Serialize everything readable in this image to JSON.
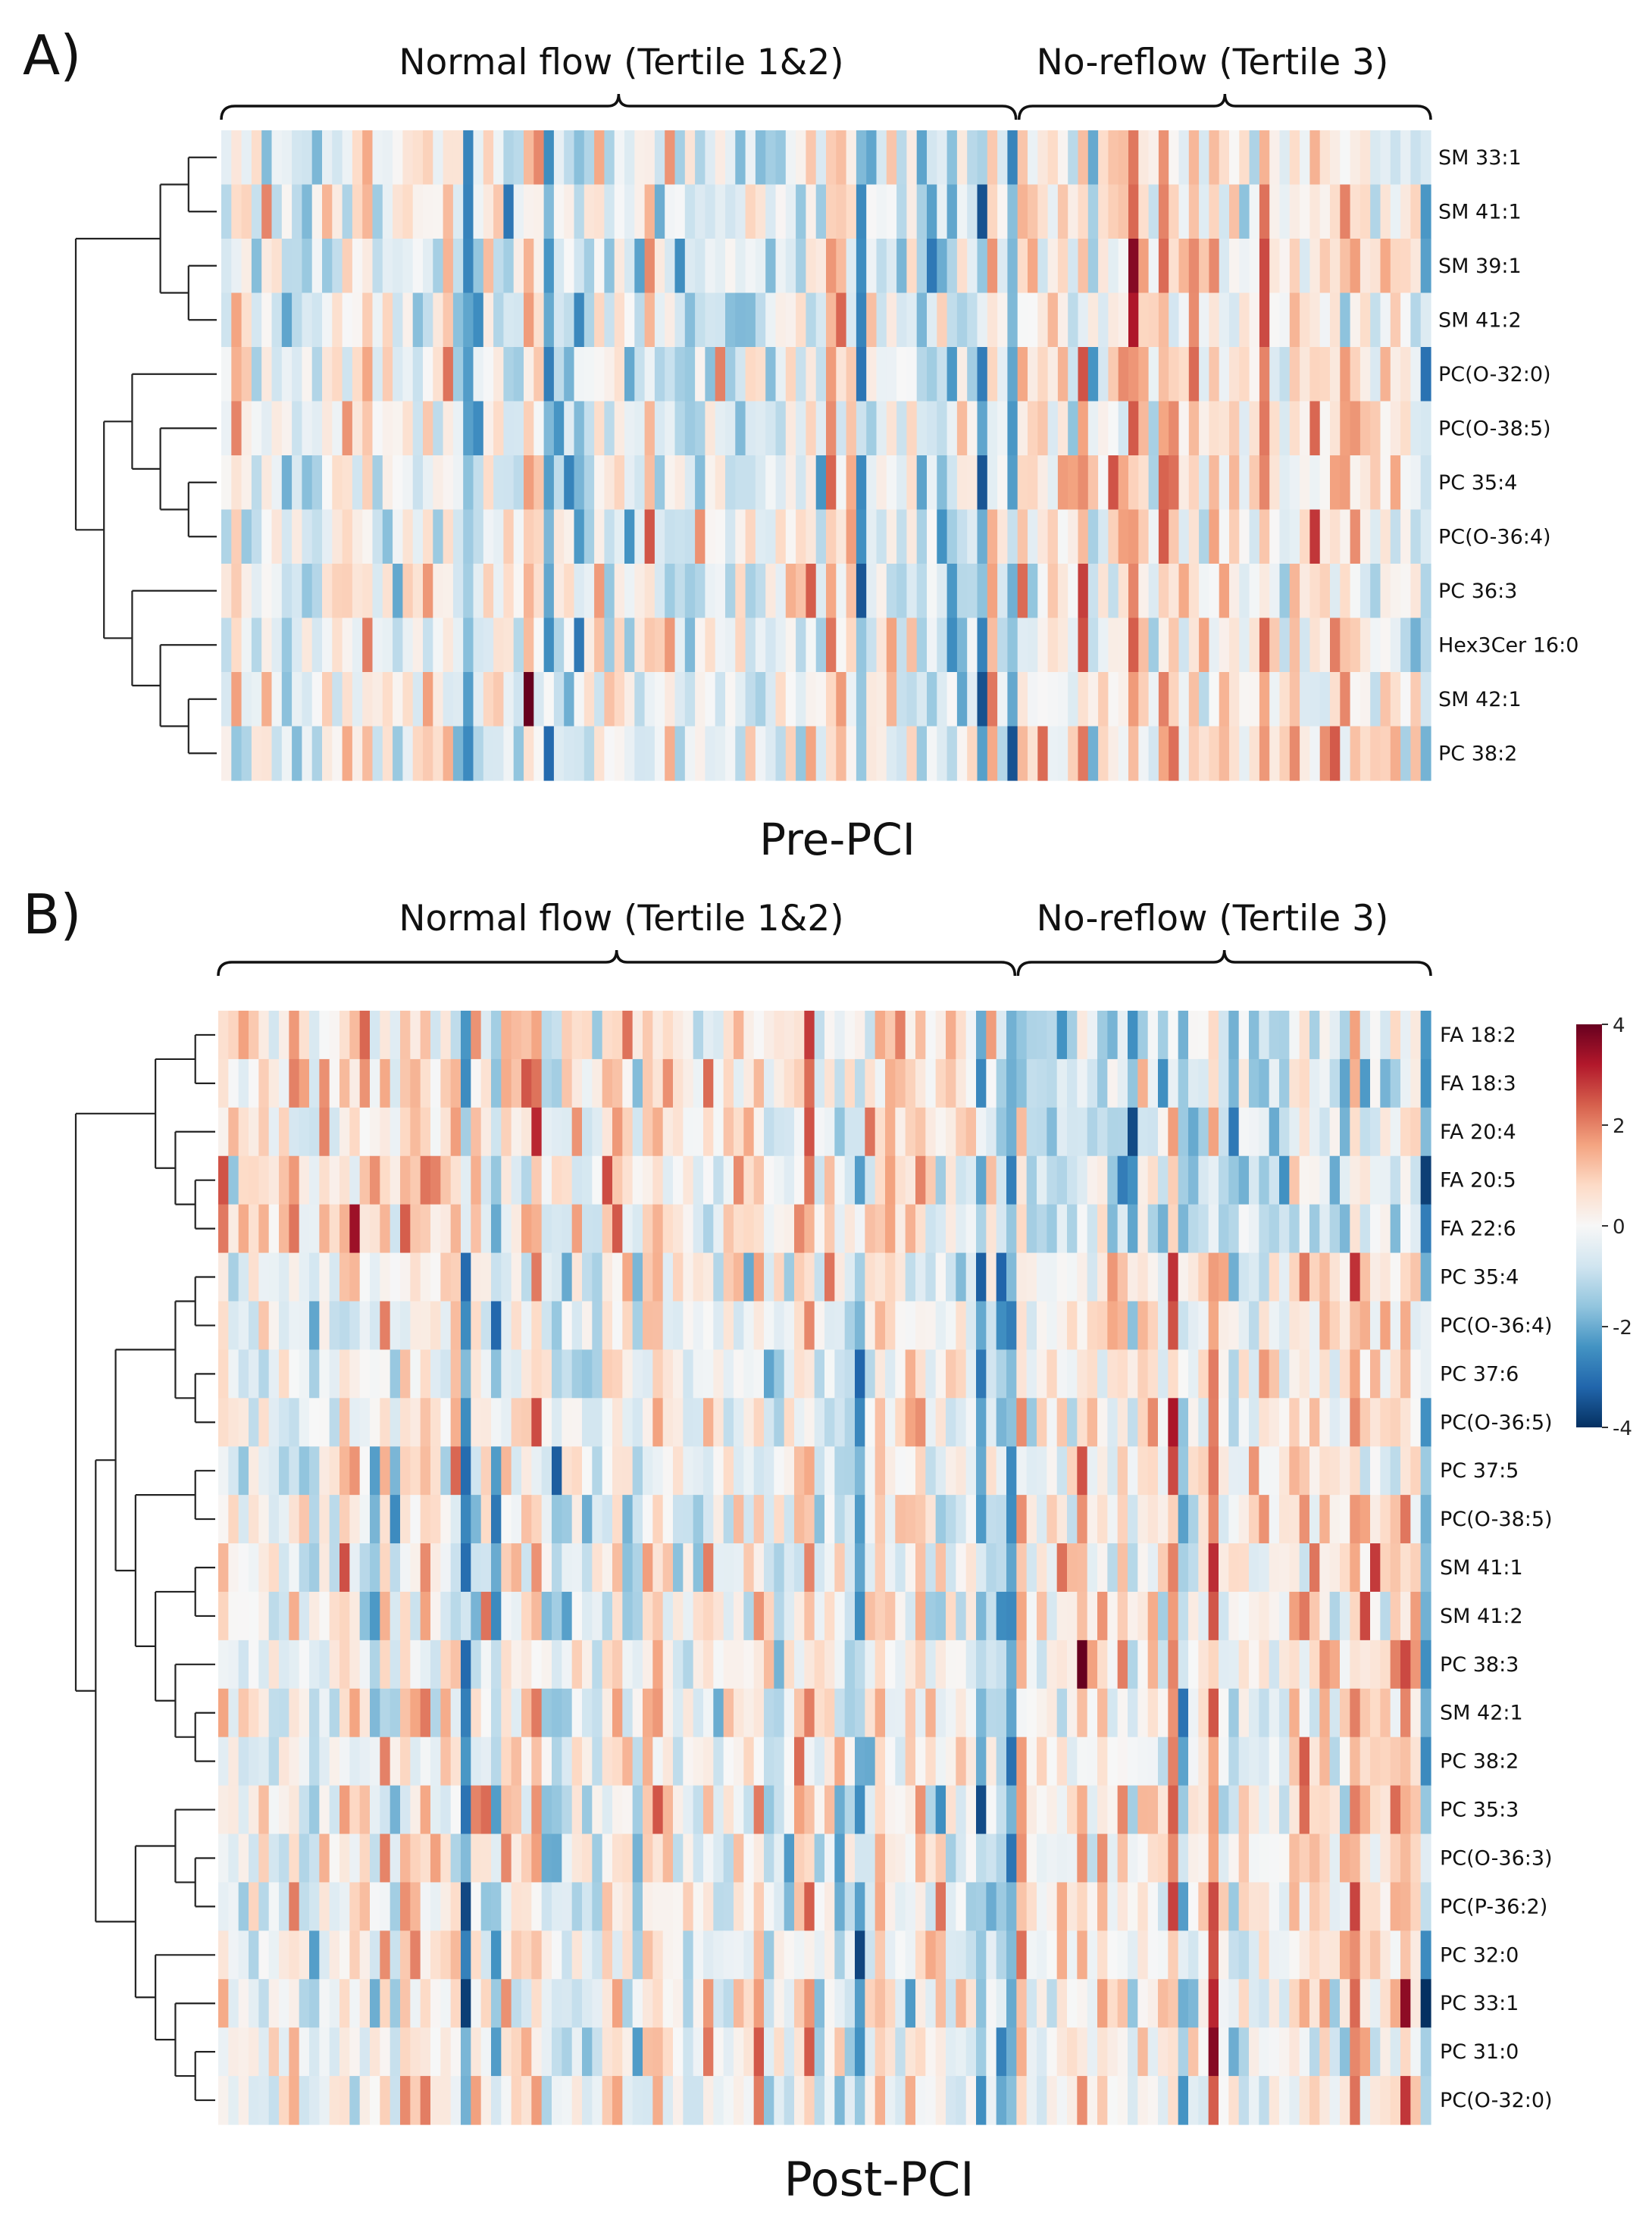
{
  "chart_data": [
    {
      "type": "heatmap",
      "panel_label": "A)",
      "caption": "Pre-PCI",
      "column_groups": [
        {
          "label": "Normal flow (Tertile 1&2)",
          "start": 0,
          "end": 79
        },
        {
          "label": "No-reflow (Tertile 3)",
          "start": 79,
          "end": 120
        }
      ],
      "n_columns": 120,
      "rows": [
        "SM 33:1",
        "SM 41:1",
        "SM 39:1",
        "SM 41:2",
        "PC(O-32:0)",
        "PC(O-38:5)",
        "PC 35:4",
        "PC(O-36:4)",
        "PC 36:3",
        "Hex3Cer 16:0",
        "SM 42:1",
        "PC 38:2"
      ],
      "row_bias": {
        "SM 33:1": [
          -0.2,
          0.3
        ],
        "SM 41:1": [
          -0.2,
          0.4
        ],
        "SM 39:1": [
          -0.2,
          0.4
        ],
        "SM 41:2": [
          -0.2,
          0.4
        ],
        "PC(O-32:0)": [
          -0.2,
          0.6
        ],
        "PC(O-38:5)": [
          -0.2,
          0.6
        ],
        "PC 35:4": [
          -0.2,
          0.7
        ],
        "PC(O-36:4)": [
          -0.2,
          0.7
        ],
        "PC 36:3": [
          -0.1,
          0.3
        ],
        "Hex3Cer 16:0": [
          -0.1,
          0.3
        ],
        "SM 42:1": [
          -0.1,
          0.4
        ],
        "PC 38:2": [
          -0.1,
          0.5
        ]
      },
      "dendrogram": [
        [
          [
            [
              0,
              1
            ],
            [
              2,
              3
            ]
          ],
          [
            [
              4,
              [
                5,
                [
                  6,
                  7
                ]
              ]
            ],
            [
              8,
              [
                9,
                [
                  10,
                  11
                ]
              ]
            ]
          ]
        ]
      ]
    },
    {
      "type": "heatmap",
      "panel_label": "B)",
      "caption": "Post-PCI",
      "column_groups": [
        {
          "label": "Normal flow (Tertile 1&2)",
          "start": 0,
          "end": 79
        },
        {
          "label": "No-reflow (Tertile 3)",
          "start": 79,
          "end": 120
        }
      ],
      "n_columns": 120,
      "rows": [
        "FA 18:2",
        "FA 18:3",
        "FA 20:4",
        "FA 20:5",
        "FA 22:6",
        "PC 35:4",
        "PC(O-36:4)",
        "PC 37:6",
        "PC(O-36:5)",
        "PC 37:5",
        "PC(O-38:5)",
        "SM 41:1",
        "SM 41:2",
        "PC 38:3",
        "SM 42:1",
        "PC 38:2",
        "PC 35:3",
        "PC(O-36:3)",
        "PC(P-36:2)",
        "PC 32:0",
        "PC 33:1",
        "PC 31:0",
        "PC(O-32:0)"
      ],
      "row_bias": {
        "FA 18:2": [
          0.3,
          -0.7
        ],
        "FA 18:3": [
          0.3,
          -0.7
        ],
        "FA 20:4": [
          0.3,
          -0.6
        ],
        "FA 20:5": [
          0.3,
          -0.6
        ],
        "FA 22:6": [
          0.3,
          -0.6
        ],
        "PC 35:4": [
          -0.2,
          0.6
        ],
        "PC(O-36:4)": [
          -0.2,
          0.6
        ],
        "PC 37:6": [
          -0.2,
          0.5
        ],
        "PC(O-36:5)": [
          -0.2,
          0.5
        ],
        "PC 37:5": [
          -0.2,
          0.5
        ],
        "PC(O-38:5)": [
          -0.2,
          0.5
        ],
        "SM 41:1": [
          -0.2,
          0.5
        ],
        "SM 41:2": [
          -0.2,
          0.5
        ],
        "PC 38:3": [
          -0.1,
          0.4
        ],
        "SM 42:1": [
          -0.1,
          0.3
        ],
        "PC 38:2": [
          -0.1,
          0.4
        ],
        "PC 35:3": [
          -0.2,
          0.6
        ],
        "PC(O-36:3)": [
          -0.2,
          0.6
        ],
        "PC(P-36:2)": [
          -0.2,
          0.6
        ],
        "PC 32:0": [
          -0.1,
          0.3
        ],
        "PC 33:1": [
          -0.1,
          0.4
        ],
        "PC 31:0": [
          -0.1,
          0.3
        ],
        "PC(O-32:0)": [
          -0.1,
          0.4
        ]
      },
      "dendrogram": [
        [
          [
            [
              0,
              1
            ],
            [
              2,
              [
                3,
                4
              ]
            ]
          ],
          [
            [
              [
                [
                  5,
                  6
                ],
                [
                  7,
                  8
                ]
              ],
              [
                [
                  9,
                  10
                ],
                [
                  [
                    11,
                    12
                  ],
                  [
                    13,
                    [
                      14,
                      15
                    ]
                  ]
                ]
              ]
            ],
            [
              [
                16,
                [
                  17,
                  18
                ]
              ],
              [
                19,
                [
                  20,
                  [
                    21,
                    22
                  ]
                ]
              ]
            ]
          ]
        ]
      ]
    }
  ],
  "colorbar": {
    "min": -4,
    "max": 4,
    "ticks": [
      4,
      2,
      0,
      -2,
      -4
    ],
    "colors": [
      "#053061",
      "#2166ac",
      "#4393c3",
      "#92c5de",
      "#d1e5f0",
      "#f7f7f7",
      "#fddbc7",
      "#f4a582",
      "#d6604d",
      "#b2182b",
      "#67001f"
    ]
  }
}
